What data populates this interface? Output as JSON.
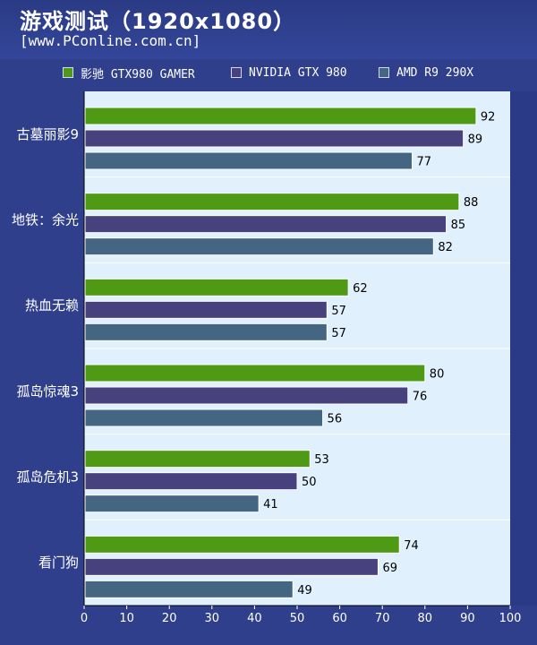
{
  "chart_data": {
    "type": "bar",
    "orientation": "horizontal",
    "title": "游戏测试（1920x1080）",
    "subtitle": "[www.PConline.com.cn]",
    "categories": [
      "古墓丽影9",
      "地铁：余光",
      "热血无赖",
      "孤岛惊魂3",
      "孤岛危机3",
      "看门狗"
    ],
    "series": [
      {
        "name": "影驰 GTX980 GAMER",
        "color": "#4f9a14",
        "values": [
          92,
          88,
          62,
          80,
          53,
          74
        ]
      },
      {
        "name": "NVIDIA GTX 980",
        "color": "#47417e",
        "values": [
          89,
          85,
          57,
          76,
          50,
          69
        ]
      },
      {
        "name": "AMD R9 290X",
        "color": "#446682",
        "values": [
          77,
          82,
          57,
          56,
          41,
          49
        ]
      }
    ],
    "xlim": [
      0,
      100
    ],
    "xticks": [
      0,
      10,
      20,
      30,
      40,
      50,
      60,
      70,
      80,
      90,
      100
    ],
    "legend_position": "top",
    "grid": "horizontal separators between groups",
    "plot_background": "#e0f0fc"
  }
}
